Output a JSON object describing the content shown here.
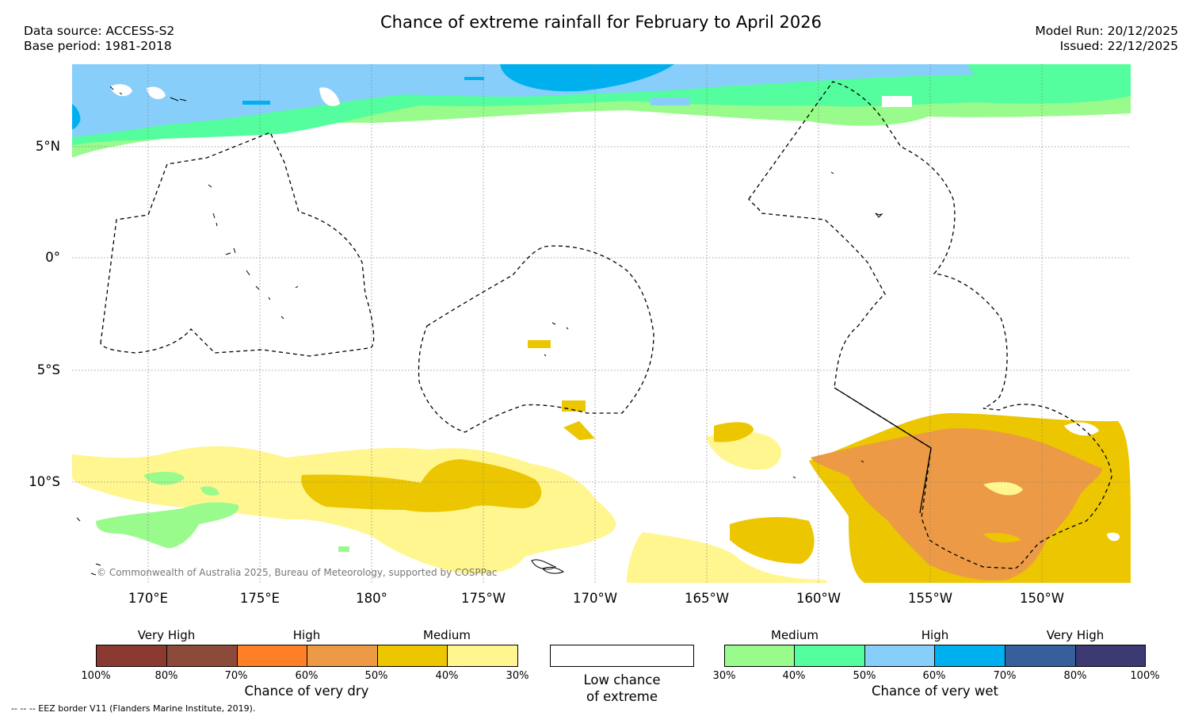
{
  "header": {
    "title": "Chance of extreme rainfall for February to April 2026",
    "data_source": "Data source: ACCESS-S2",
    "base_period": "Base period: 1981-2018",
    "model_run": "Model Run: 20/12/2025",
    "issued": "Issued: 22/12/2025"
  },
  "map": {
    "lat_labels": [
      "5°N",
      "0°",
      "5°S",
      "10°S"
    ],
    "lon_labels": [
      "170°E",
      "175°E",
      "180°",
      "175°W",
      "170°W",
      "165°W",
      "160°W",
      "155°W",
      "150°W"
    ],
    "copyright": "© Commonwealth of Australia 2025, Bureau of Meteorology, supported by COSPPac"
  },
  "legend": {
    "dry": {
      "headings": [
        "Very High",
        "High",
        "Medium"
      ],
      "ticks": [
        "100%",
        "80%",
        "70%",
        "60%",
        "50%",
        "40%",
        "30%"
      ],
      "caption": "Chance of very dry",
      "colors": [
        "#8b3a32",
        "#8b4a3a",
        "#ff7f27",
        "#ec9a45",
        "#ecc600",
        "#fff68f"
      ]
    },
    "neutral": {
      "caption_line1": "Low chance",
      "caption_line2": "of extreme",
      "color": "#ffffff"
    },
    "wet": {
      "headings": [
        "Medium",
        "High",
        "Very High"
      ],
      "ticks": [
        "30%",
        "40%",
        "50%",
        "60%",
        "70%",
        "80%",
        "100%"
      ],
      "caption": "Chance of very wet",
      "colors": [
        "#98fb8c",
        "#54fd9d",
        "#87cefa",
        "#00b0ee",
        "#365f9c",
        "#3c3973"
      ]
    }
  },
  "footnote": "--  --  -- EEZ border V11 (Flanders Marine Institute, 2019)."
}
